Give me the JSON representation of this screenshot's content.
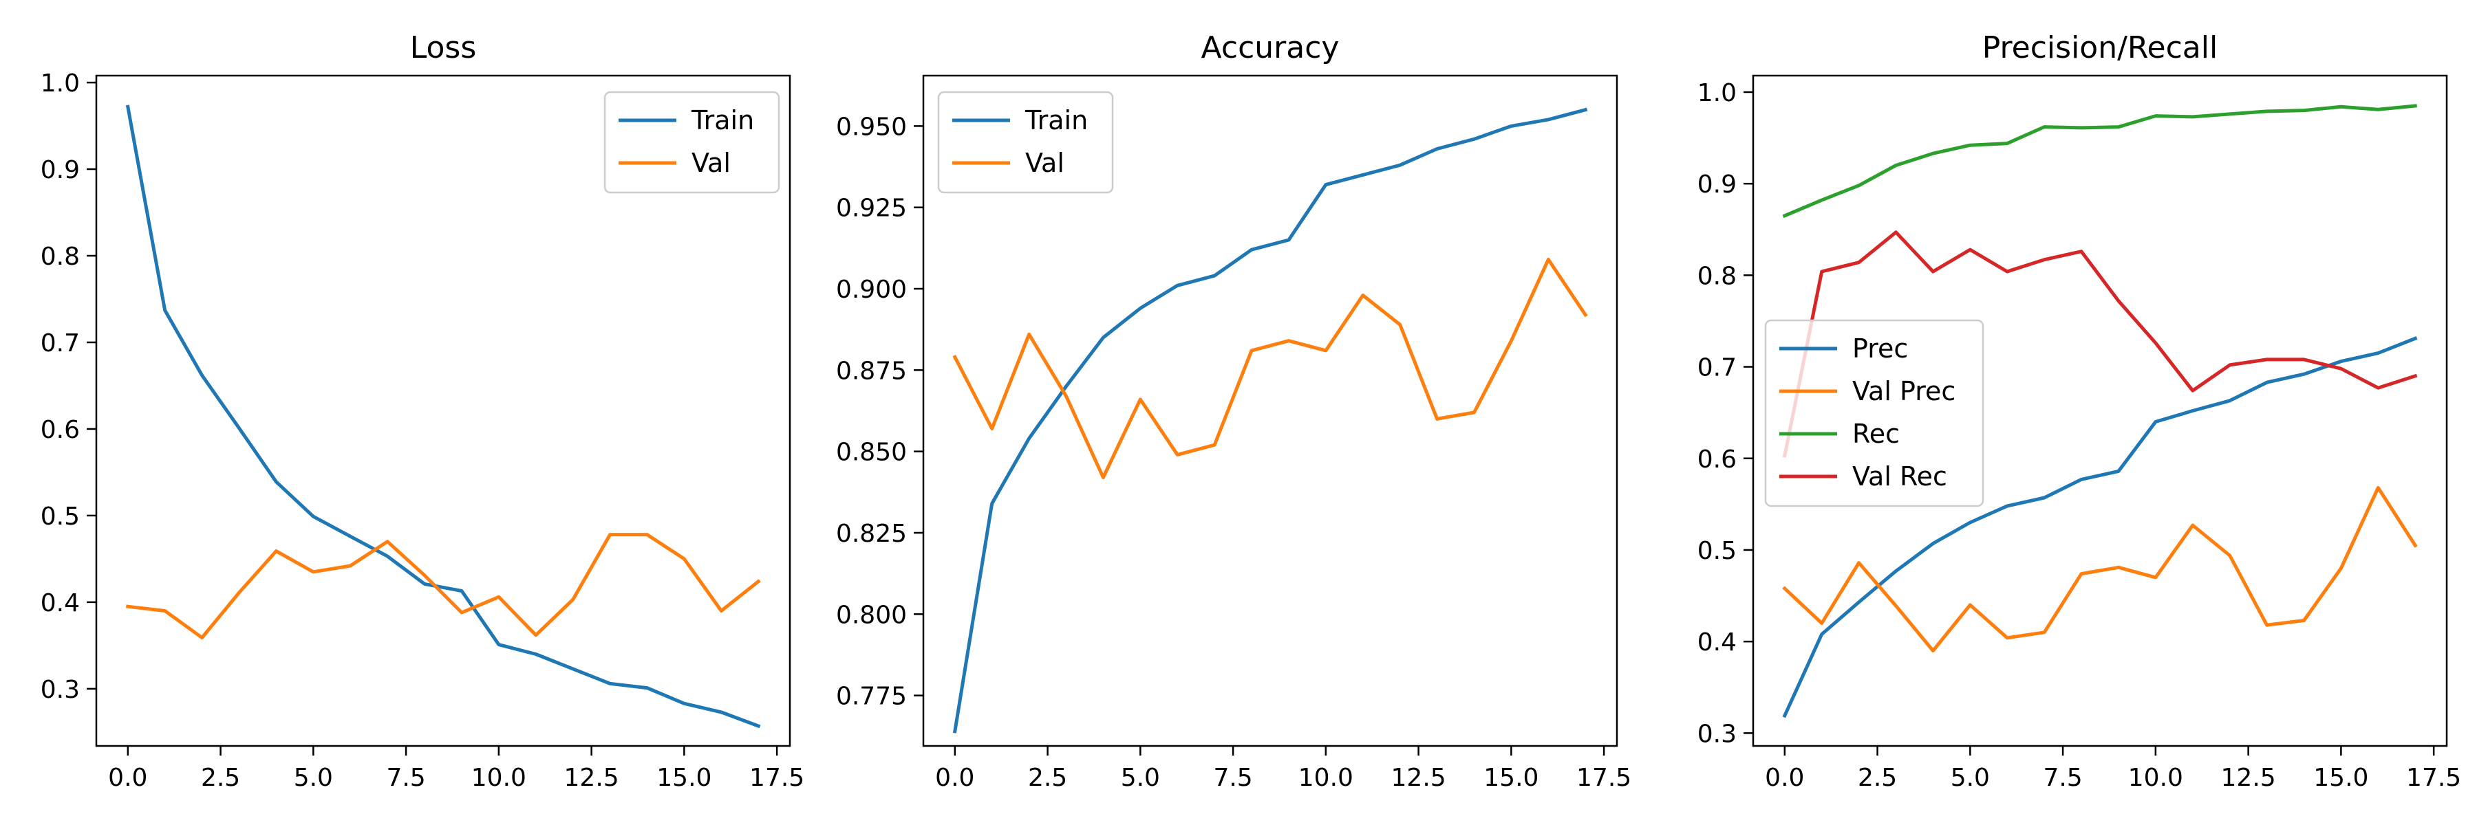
{
  "chart_data": [
    {
      "type": "line",
      "title": "Loss",
      "xlabel": "",
      "ylabel": "",
      "xlim": [
        -0.85,
        17.85
      ],
      "ylim": [
        0.234,
        1.008
      ],
      "xticks": [
        0,
        2.5,
        5,
        7.5,
        10,
        12.5,
        15,
        17.5
      ],
      "xtick_labels": [
        "0.0",
        "2.5",
        "5.0",
        "7.5",
        "10.0",
        "12.5",
        "15.0",
        "17.5"
      ],
      "yticks": [
        0.3,
        0.4,
        0.5,
        0.6,
        0.7,
        0.8,
        0.9,
        1.0
      ],
      "ytick_labels": [
        "0.3",
        "0.4",
        "0.5",
        "0.6",
        "0.7",
        "0.8",
        "0.9",
        "1.0"
      ],
      "legend_position": "upper-right",
      "grid": false,
      "x": [
        0,
        1,
        2,
        3,
        4,
        5,
        6,
        7,
        8,
        9,
        10,
        11,
        12,
        13,
        14,
        15,
        16,
        17
      ],
      "series": [
        {
          "name": "Train",
          "color": "#1f77b4",
          "values": [
            0.972,
            0.737,
            0.662,
            0.601,
            0.539,
            0.499,
            0.476,
            0.453,
            0.421,
            0.413,
            0.351,
            0.34,
            0.323,
            0.306,
            0.301,
            0.283,
            0.273,
            0.257
          ]
        },
        {
          "name": "Val",
          "color": "#ff7f0e",
          "values": [
            0.395,
            0.39,
            0.359,
            0.411,
            0.459,
            0.435,
            0.442,
            0.47,
            0.431,
            0.388,
            0.406,
            0.362,
            0.403,
            0.478,
            0.478,
            0.45,
            0.39,
            0.424
          ]
        }
      ]
    },
    {
      "type": "line",
      "title": "Accuracy",
      "xlabel": "",
      "ylabel": "",
      "xlim": [
        -0.85,
        17.85
      ],
      "ylim": [
        0.7595,
        0.9655
      ],
      "xticks": [
        0,
        2.5,
        5,
        7.5,
        10,
        12.5,
        15,
        17.5
      ],
      "xtick_labels": [
        "0.0",
        "2.5",
        "5.0",
        "7.5",
        "10.0",
        "12.5",
        "15.0",
        "17.5"
      ],
      "yticks": [
        0.775,
        0.8,
        0.825,
        0.85,
        0.875,
        0.9,
        0.925,
        0.95
      ],
      "ytick_labels": [
        "0.775",
        "0.800",
        "0.825",
        "0.850",
        "0.875",
        "0.900",
        "0.925",
        "0.950"
      ],
      "legend_position": "upper-left",
      "grid": false,
      "x": [
        0,
        1,
        2,
        3,
        4,
        5,
        6,
        7,
        8,
        9,
        10,
        11,
        12,
        13,
        14,
        15,
        16,
        17
      ],
      "series": [
        {
          "name": "Train",
          "color": "#1f77b4",
          "values": [
            0.764,
            0.834,
            0.854,
            0.87,
            0.885,
            0.894,
            0.901,
            0.904,
            0.912,
            0.915,
            0.932,
            0.935,
            0.938,
            0.943,
            0.946,
            0.95,
            0.952,
            0.955
          ]
        },
        {
          "name": "Val",
          "color": "#ff7f0e",
          "values": [
            0.879,
            0.857,
            0.886,
            0.867,
            0.842,
            0.866,
            0.849,
            0.852,
            0.881,
            0.884,
            0.881,
            0.898,
            0.889,
            0.86,
            0.862,
            0.884,
            0.909,
            0.892
          ]
        }
      ]
    },
    {
      "type": "line",
      "title": "Precision/Recall",
      "xlabel": "",
      "ylabel": "",
      "xlim": [
        -0.85,
        17.85
      ],
      "ylim": [
        0.286,
        1.018
      ],
      "xticks": [
        0,
        2.5,
        5,
        7.5,
        10,
        12.5,
        15,
        17.5
      ],
      "xtick_labels": [
        "0.0",
        "2.5",
        "5.0",
        "7.5",
        "10.0",
        "12.5",
        "15.0",
        "17.5"
      ],
      "yticks": [
        0.3,
        0.4,
        0.5,
        0.6,
        0.7,
        0.8,
        0.9,
        1.0
      ],
      "ytick_labels": [
        "0.3",
        "0.4",
        "0.5",
        "0.6",
        "0.7",
        "0.8",
        "0.9",
        "1.0"
      ],
      "legend_position": "center-left",
      "grid": false,
      "x": [
        0,
        1,
        2,
        3,
        4,
        5,
        6,
        7,
        8,
        9,
        10,
        11,
        12,
        13,
        14,
        15,
        16,
        17
      ],
      "series": [
        {
          "name": "Prec",
          "color": "#1f77b4",
          "values": [
            0.319,
            0.408,
            0.443,
            0.477,
            0.507,
            0.53,
            0.548,
            0.557,
            0.577,
            0.586,
            0.64,
            0.652,
            0.663,
            0.683,
            0.692,
            0.706,
            0.715,
            0.731
          ]
        },
        {
          "name": "Val Prec",
          "color": "#ff7f0e",
          "values": [
            0.458,
            0.42,
            0.486,
            0.439,
            0.39,
            0.44,
            0.404,
            0.41,
            0.474,
            0.481,
            0.47,
            0.527,
            0.494,
            0.418,
            0.423,
            0.48,
            0.568,
            0.505
          ]
        },
        {
          "name": "Rec",
          "color": "#2ca02c",
          "values": [
            0.865,
            0.882,
            0.898,
            0.92,
            0.933,
            0.942,
            0.944,
            0.962,
            0.961,
            0.962,
            0.974,
            0.973,
            0.976,
            0.979,
            0.98,
            0.984,
            0.981,
            0.985
          ]
        },
        {
          "name": "Val Rec",
          "color": "#d62728",
          "values": [
            0.603,
            0.804,
            0.814,
            0.847,
            0.804,
            0.828,
            0.804,
            0.817,
            0.826,
            0.772,
            0.726,
            0.674,
            0.702,
            0.708,
            0.708,
            0.698,
            0.677,
            0.69
          ]
        }
      ]
    }
  ]
}
